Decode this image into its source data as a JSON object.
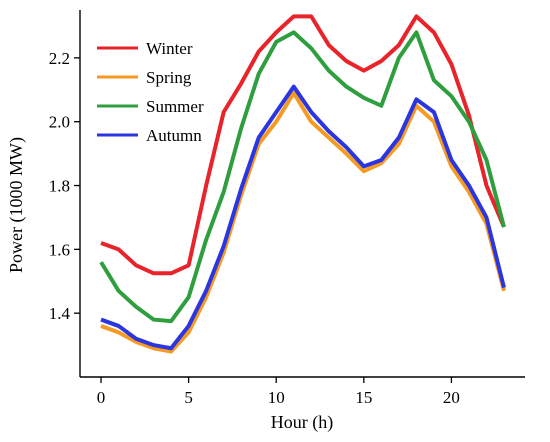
{
  "chart_data": {
    "type": "line",
    "xlabel": "Hour (h)",
    "ylabel": "Power (1000 MW)",
    "xlim": [
      -1.2,
      24.2
    ],
    "ylim": [
      1.2,
      2.35
    ],
    "xticks": [
      0,
      5,
      10,
      15,
      20
    ],
    "yticks": [
      1.4,
      1.6,
      1.8,
      2.0,
      2.2
    ],
    "xtick_labels": [
      "0",
      "5",
      "10",
      "15",
      "20"
    ],
    "ytick_labels": [
      "1.4",
      "1.6",
      "1.8",
      "2.0",
      "2.2"
    ],
    "grid": false,
    "legend_position": "top-left",
    "x": [
      0,
      1,
      2,
      3,
      4,
      5,
      6,
      7,
      8,
      9,
      10,
      11,
      12,
      13,
      14,
      15,
      16,
      17,
      18,
      19,
      20,
      21,
      22,
      23
    ],
    "series": [
      {
        "name": "Winter",
        "color": "#e8232a",
        "values": [
          1.62,
          1.6,
          1.55,
          1.525,
          1.525,
          1.55,
          1.8,
          2.03,
          2.12,
          2.22,
          2.28,
          2.33,
          2.33,
          2.24,
          2.19,
          2.16,
          2.19,
          2.24,
          2.33,
          2.28,
          2.18,
          2.02,
          1.8,
          1.67
        ]
      },
      {
        "name": "Spring",
        "color": "#f59a23",
        "values": [
          1.36,
          1.34,
          1.31,
          1.29,
          1.28,
          1.34,
          1.45,
          1.59,
          1.77,
          1.93,
          2.0,
          2.09,
          2.0,
          1.95,
          1.9,
          1.845,
          1.87,
          1.93,
          2.05,
          2.0,
          1.86,
          1.78,
          1.68,
          1.47
        ]
      },
      {
        "name": "Summer",
        "color": "#2e9e3e",
        "values": [
          1.56,
          1.47,
          1.42,
          1.38,
          1.375,
          1.45,
          1.63,
          1.78,
          1.98,
          2.15,
          2.25,
          2.28,
          2.23,
          2.16,
          2.11,
          2.075,
          2.05,
          2.2,
          2.28,
          2.13,
          2.08,
          2.0,
          1.88,
          1.67
        ]
      },
      {
        "name": "Autumn",
        "color": "#2b35e0",
        "values": [
          1.38,
          1.36,
          1.32,
          1.3,
          1.29,
          1.36,
          1.47,
          1.61,
          1.79,
          1.95,
          2.03,
          2.11,
          2.03,
          1.97,
          1.92,
          1.86,
          1.88,
          1.95,
          2.07,
          2.03,
          1.88,
          1.8,
          1.7,
          1.48
        ]
      }
    ]
  }
}
